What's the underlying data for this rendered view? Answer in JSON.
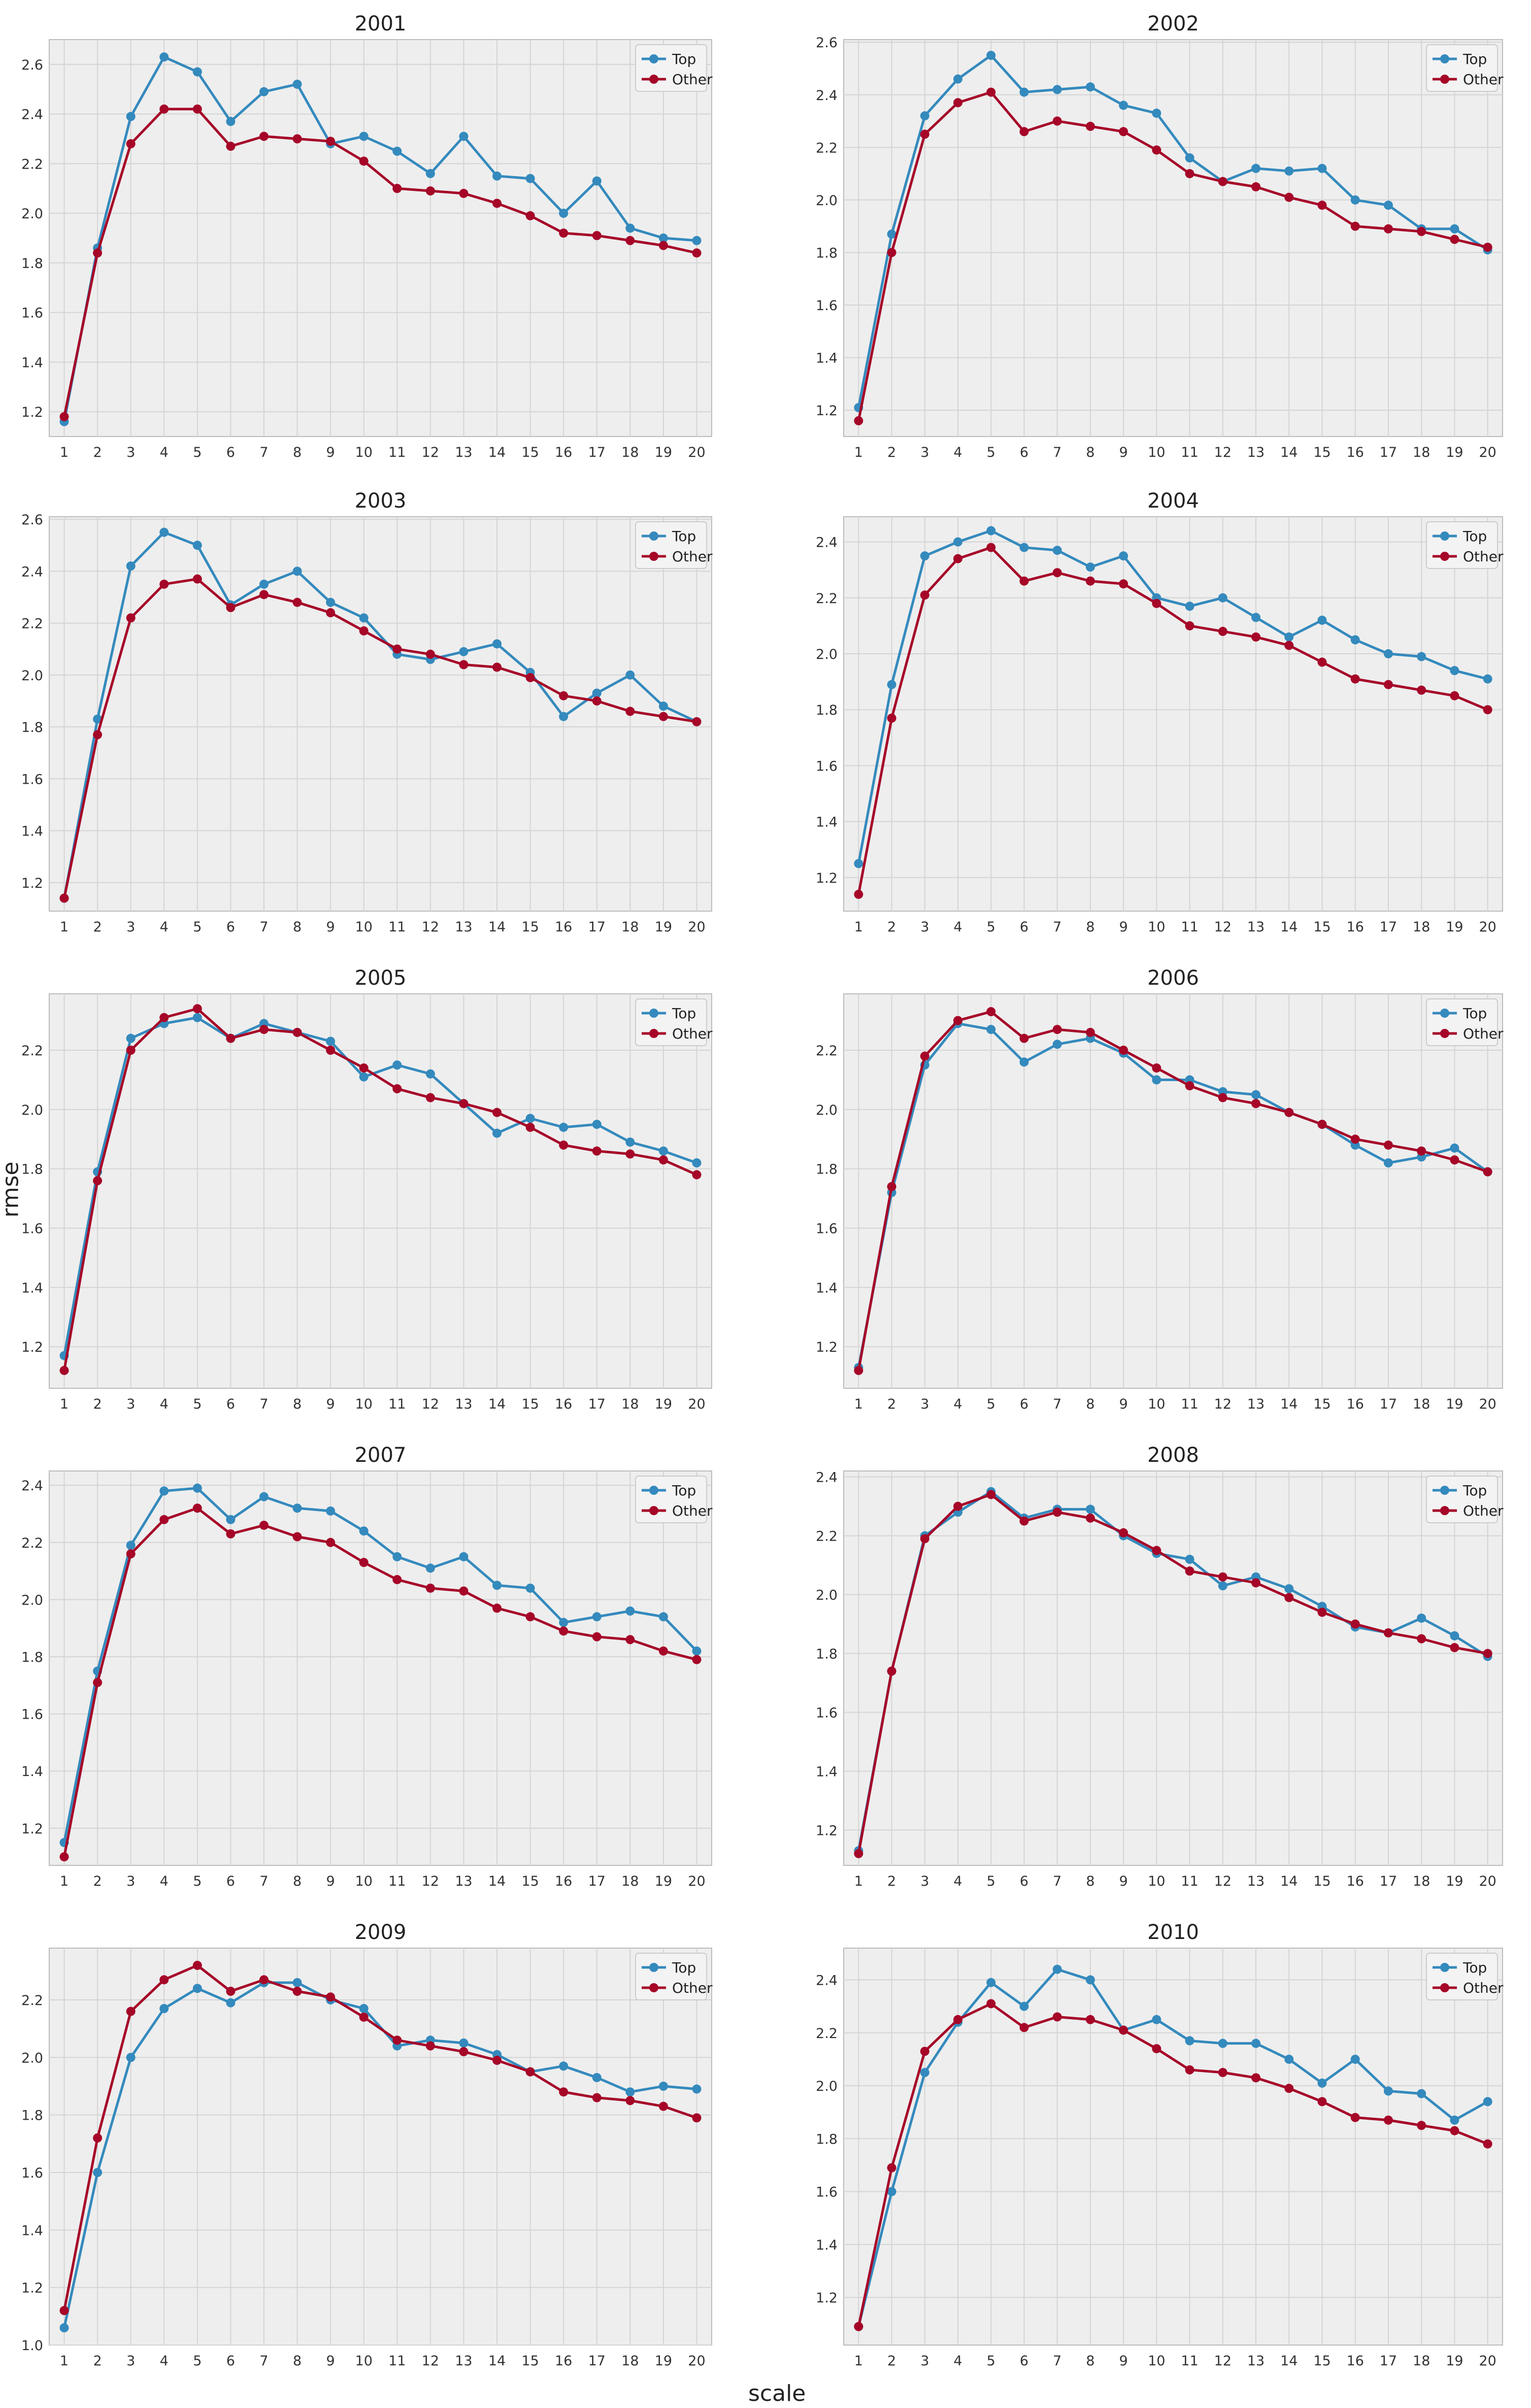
{
  "figure": {
    "xlabel": "scale",
    "ylabel": "rmse",
    "legend_location": "top-right",
    "grid": true,
    "colors": {
      "Top": "#348ABD",
      "Other": "#A60628",
      "axes_bg": "#EEEEEE",
      "grid": "#D4D4D4"
    }
  },
  "chart_data": [
    {
      "type": "line",
      "title": "2001",
      "x": [
        1,
        2,
        3,
        4,
        5,
        6,
        7,
        8,
        9,
        10,
        11,
        12,
        13,
        14,
        15,
        16,
        17,
        18,
        19,
        20
      ],
      "series": [
        {
          "name": "Top",
          "values": [
            1.16,
            1.86,
            2.39,
            2.63,
            2.57,
            2.37,
            2.49,
            2.52,
            2.28,
            2.31,
            2.25,
            2.16,
            2.31,
            2.15,
            2.14,
            2.0,
            2.13,
            1.94,
            1.9,
            1.89
          ]
        },
        {
          "name": "Other",
          "values": [
            1.18,
            1.84,
            2.28,
            2.42,
            2.42,
            2.27,
            2.31,
            2.3,
            2.29,
            2.21,
            2.1,
            2.09,
            2.08,
            2.04,
            1.99,
            1.92,
            1.91,
            1.89,
            1.87,
            1.84
          ]
        }
      ],
      "ylim": [
        1.1,
        2.7
      ],
      "yticks": [
        "1.2",
        "1.4",
        "1.6",
        "1.8",
        "2.0",
        "2.2",
        "2.4",
        "2.6"
      ]
    },
    {
      "type": "line",
      "title": "2002",
      "x": [
        1,
        2,
        3,
        4,
        5,
        6,
        7,
        8,
        9,
        10,
        11,
        12,
        13,
        14,
        15,
        16,
        17,
        18,
        19,
        20
      ],
      "series": [
        {
          "name": "Top",
          "values": [
            1.21,
            1.87,
            2.32,
            2.46,
            2.55,
            2.41,
            2.42,
            2.43,
            2.36,
            2.33,
            2.16,
            2.07,
            2.12,
            2.11,
            2.12,
            2.0,
            1.98,
            1.89,
            1.89,
            1.81
          ]
        },
        {
          "name": "Other",
          "values": [
            1.16,
            1.8,
            2.25,
            2.37,
            2.41,
            2.26,
            2.3,
            2.28,
            2.26,
            2.19,
            2.1,
            2.07,
            2.05,
            2.01,
            1.98,
            1.9,
            1.89,
            1.88,
            1.85,
            1.82
          ]
        }
      ],
      "ylim": [
        1.1,
        2.61
      ],
      "yticks": [
        "1.2",
        "1.4",
        "1.6",
        "1.8",
        "2.0",
        "2.2",
        "2.4",
        "2.6"
      ]
    },
    {
      "type": "line",
      "title": "2003",
      "x": [
        1,
        2,
        3,
        4,
        5,
        6,
        7,
        8,
        9,
        10,
        11,
        12,
        13,
        14,
        15,
        16,
        17,
        18,
        19,
        20
      ],
      "series": [
        {
          "name": "Top",
          "values": [
            1.14,
            1.83,
            2.42,
            2.55,
            2.5,
            2.27,
            2.35,
            2.4,
            2.28,
            2.22,
            2.08,
            2.06,
            2.09,
            2.12,
            2.01,
            1.84,
            1.93,
            2.0,
            1.88,
            1.82
          ]
        },
        {
          "name": "Other",
          "values": [
            1.14,
            1.77,
            2.22,
            2.35,
            2.37,
            2.26,
            2.31,
            2.28,
            2.24,
            2.17,
            2.1,
            2.08,
            2.04,
            2.03,
            1.99,
            1.92,
            1.9,
            1.86,
            1.84,
            1.82
          ]
        }
      ],
      "ylim": [
        1.09,
        2.61
      ],
      "yticks": [
        "1.2",
        "1.4",
        "1.6",
        "1.8",
        "2.0",
        "2.2",
        "2.4",
        "2.6"
      ]
    },
    {
      "type": "line",
      "title": "2004",
      "x": [
        1,
        2,
        3,
        4,
        5,
        6,
        7,
        8,
        9,
        10,
        11,
        12,
        13,
        14,
        15,
        16,
        17,
        18,
        19,
        20
      ],
      "series": [
        {
          "name": "Top",
          "values": [
            1.25,
            1.89,
            2.35,
            2.4,
            2.44,
            2.38,
            2.37,
            2.31,
            2.35,
            2.2,
            2.17,
            2.2,
            2.13,
            2.06,
            2.12,
            2.05,
            2.0,
            1.99,
            1.94,
            1.91
          ]
        },
        {
          "name": "Other",
          "values": [
            1.14,
            1.77,
            2.21,
            2.34,
            2.38,
            2.26,
            2.29,
            2.26,
            2.25,
            2.18,
            2.1,
            2.08,
            2.06,
            2.03,
            1.97,
            1.91,
            1.89,
            1.87,
            1.85,
            1.8
          ]
        }
      ],
      "ylim": [
        1.08,
        2.49
      ],
      "yticks": [
        "1.2",
        "1.4",
        "1.6",
        "1.8",
        "2.0",
        "2.2",
        "2.4"
      ]
    },
    {
      "type": "line",
      "title": "2005",
      "x": [
        1,
        2,
        3,
        4,
        5,
        6,
        7,
        8,
        9,
        10,
        11,
        12,
        13,
        14,
        15,
        16,
        17,
        18,
        19,
        20
      ],
      "series": [
        {
          "name": "Top",
          "values": [
            1.17,
            1.79,
            2.24,
            2.29,
            2.31,
            2.24,
            2.29,
            2.26,
            2.23,
            2.11,
            2.15,
            2.12,
            2.02,
            1.92,
            1.97,
            1.94,
            1.95,
            1.89,
            1.86,
            1.82
          ]
        },
        {
          "name": "Other",
          "values": [
            1.12,
            1.76,
            2.2,
            2.31,
            2.34,
            2.24,
            2.27,
            2.26,
            2.2,
            2.14,
            2.07,
            2.04,
            2.02,
            1.99,
            1.94,
            1.88,
            1.86,
            1.85,
            1.83,
            1.78
          ]
        }
      ],
      "ylim": [
        1.06,
        2.39
      ],
      "yticks": [
        "1.2",
        "1.4",
        "1.6",
        "1.8",
        "2.0",
        "2.2"
      ]
    },
    {
      "type": "line",
      "title": "2006",
      "x": [
        1,
        2,
        3,
        4,
        5,
        6,
        7,
        8,
        9,
        10,
        11,
        12,
        13,
        14,
        15,
        16,
        17,
        18,
        19,
        20
      ],
      "series": [
        {
          "name": "Top",
          "values": [
            1.13,
            1.72,
            2.15,
            2.29,
            2.27,
            2.16,
            2.22,
            2.24,
            2.19,
            2.1,
            2.1,
            2.06,
            2.05,
            1.99,
            1.95,
            1.88,
            1.82,
            1.84,
            1.87,
            1.79
          ]
        },
        {
          "name": "Other",
          "values": [
            1.12,
            1.74,
            2.18,
            2.3,
            2.33,
            2.24,
            2.27,
            2.26,
            2.2,
            2.14,
            2.08,
            2.04,
            2.02,
            1.99,
            1.95,
            1.9,
            1.88,
            1.86,
            1.83,
            1.79
          ]
        }
      ],
      "ylim": [
        1.06,
        2.39
      ],
      "yticks": [
        "1.2",
        "1.4",
        "1.6",
        "1.8",
        "2.0",
        "2.2"
      ]
    },
    {
      "type": "line",
      "title": "2007",
      "x": [
        1,
        2,
        3,
        4,
        5,
        6,
        7,
        8,
        9,
        10,
        11,
        12,
        13,
        14,
        15,
        16,
        17,
        18,
        19,
        20
      ],
      "series": [
        {
          "name": "Top",
          "values": [
            1.15,
            1.75,
            2.19,
            2.38,
            2.39,
            2.28,
            2.36,
            2.32,
            2.31,
            2.24,
            2.15,
            2.11,
            2.15,
            2.05,
            2.04,
            1.92,
            1.94,
            1.96,
            1.94,
            1.82
          ]
        },
        {
          "name": "Other",
          "values": [
            1.1,
            1.71,
            2.16,
            2.28,
            2.32,
            2.23,
            2.26,
            2.22,
            2.2,
            2.13,
            2.07,
            2.04,
            2.03,
            1.97,
            1.94,
            1.89,
            1.87,
            1.86,
            1.82,
            1.79
          ]
        }
      ],
      "ylim": [
        1.07,
        2.45
      ],
      "yticks": [
        "1.2",
        "1.4",
        "1.6",
        "1.8",
        "2.0",
        "2.2",
        "2.4"
      ]
    },
    {
      "type": "line",
      "title": "2008",
      "x": [
        1,
        2,
        3,
        4,
        5,
        6,
        7,
        8,
        9,
        10,
        11,
        12,
        13,
        14,
        15,
        16,
        17,
        18,
        19,
        20
      ],
      "series": [
        {
          "name": "Top",
          "values": [
            1.13,
            1.74,
            2.2,
            2.28,
            2.35,
            2.26,
            2.29,
            2.29,
            2.2,
            2.14,
            2.12,
            2.03,
            2.06,
            2.02,
            1.96,
            1.89,
            1.87,
            1.92,
            1.86,
            1.79
          ]
        },
        {
          "name": "Other",
          "values": [
            1.12,
            1.74,
            2.19,
            2.3,
            2.34,
            2.25,
            2.28,
            2.26,
            2.21,
            2.15,
            2.08,
            2.06,
            2.04,
            1.99,
            1.94,
            1.9,
            1.87,
            1.85,
            1.82,
            1.8
          ]
        }
      ],
      "ylim": [
        1.08,
        2.42
      ],
      "yticks": [
        "1.2",
        "1.4",
        "1.6",
        "1.8",
        "2.0",
        "2.2",
        "2.4"
      ]
    },
    {
      "type": "line",
      "title": "2009",
      "x": [
        1,
        2,
        3,
        4,
        5,
        6,
        7,
        8,
        9,
        10,
        11,
        12,
        13,
        14,
        15,
        16,
        17,
        18,
        19,
        20
      ],
      "series": [
        {
          "name": "Top",
          "values": [
            1.06,
            1.6,
            2.0,
            2.17,
            2.24,
            2.19,
            2.26,
            2.26,
            2.2,
            2.17,
            2.04,
            2.06,
            2.05,
            2.01,
            1.95,
            1.97,
            1.93,
            1.88,
            1.9,
            1.89
          ]
        },
        {
          "name": "Other",
          "values": [
            1.12,
            1.72,
            2.16,
            2.27,
            2.32,
            2.23,
            2.27,
            2.23,
            2.21,
            2.14,
            2.06,
            2.04,
            2.02,
            1.99,
            1.95,
            1.88,
            1.86,
            1.85,
            1.83,
            1.79
          ]
        }
      ],
      "ylim": [
        1.0,
        2.38
      ],
      "yticks": [
        "1.0",
        "1.2",
        "1.4",
        "1.6",
        "1.8",
        "2.0",
        "2.2"
      ]
    },
    {
      "type": "line",
      "title": "2010",
      "x": [
        1,
        2,
        3,
        4,
        5,
        6,
        7,
        8,
        9,
        10,
        11,
        12,
        13,
        14,
        15,
        16,
        17,
        18,
        19,
        20
      ],
      "series": [
        {
          "name": "Top",
          "values": [
            1.09,
            1.6,
            2.05,
            2.24,
            2.39,
            2.3,
            2.44,
            2.4,
            2.21,
            2.25,
            2.17,
            2.16,
            2.16,
            2.1,
            2.01,
            2.1,
            1.98,
            1.97,
            1.87,
            1.94
          ]
        },
        {
          "name": "Other",
          "values": [
            1.09,
            1.69,
            2.13,
            2.25,
            2.31,
            2.22,
            2.26,
            2.25,
            2.21,
            2.14,
            2.06,
            2.05,
            2.03,
            1.99,
            1.94,
            1.88,
            1.87,
            1.85,
            1.83,
            1.78
          ]
        }
      ],
      "ylim": [
        1.02,
        2.52
      ],
      "yticks": [
        "1.2",
        "1.4",
        "1.6",
        "1.8",
        "2.0",
        "2.2",
        "2.4"
      ]
    }
  ]
}
